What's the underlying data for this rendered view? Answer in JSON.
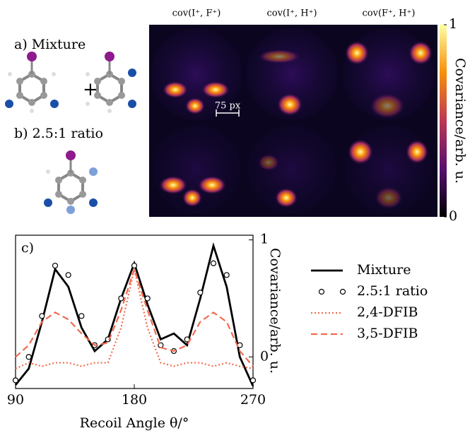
{
  "top_panels": {
    "label_a": "a) Mixture",
    "label_b": "b) 2.5:1 ratio",
    "columns": [
      "cov(I⁺, F⁺)",
      "cov(I⁺, H⁺)",
      "cov(F⁺, H⁺)"
    ],
    "scale_bar": "75 px",
    "colorbar": {
      "label": "Covariance/arb. u.",
      "clim": [
        0,
        1
      ],
      "ticks": [
        0,
        1
      ]
    }
  },
  "chart_data": {
    "type": "line",
    "panel_label": "c)",
    "xlabel": "Recoil Angle θ/°",
    "ylabel": "Covariance/arb. u.",
    "x": [
      90,
      100,
      110,
      120,
      130,
      140,
      150,
      160,
      170,
      180,
      190,
      200,
      210,
      220,
      230,
      240,
      250,
      260,
      270
    ],
    "xlim": [
      90,
      270
    ],
    "xticks": [
      90,
      180,
      270
    ],
    "ylim": [
      -0.27,
      1.04
    ],
    "yticks": [
      0,
      1
    ],
    "series": [
      {
        "name": "Mixture",
        "color": "#000000",
        "style": "solid",
        "values": [
          -0.24,
          -0.1,
          0.3,
          0.75,
          0.6,
          0.25,
          0.05,
          0.15,
          0.5,
          0.8,
          0.45,
          0.15,
          0.2,
          0.1,
          0.5,
          0.95,
          0.6,
          0.0,
          -0.25
        ]
      },
      {
        "name": "2.5:1 ratio",
        "color": "#000000",
        "style": "markers",
        "values": [
          -0.2,
          0.0,
          0.35,
          0.78,
          0.7,
          0.35,
          0.1,
          0.15,
          0.5,
          0.78,
          0.5,
          0.1,
          0.05,
          0.15,
          0.55,
          0.8,
          0.7,
          0.1,
          -0.2
        ]
      },
      {
        "name": "2,4-DFIB",
        "color": "#f26b4f",
        "style": "dotted",
        "values": [
          -0.1,
          -0.05,
          -0.08,
          -0.05,
          -0.05,
          -0.08,
          -0.05,
          -0.05,
          0.25,
          0.75,
          0.25,
          -0.05,
          -0.08,
          -0.05,
          -0.05,
          -0.08,
          -0.05,
          -0.08,
          -0.1
        ]
      },
      {
        "name": "3,5-DFIB",
        "color": "#f26b4f",
        "style": "dashed",
        "values": [
          0.0,
          0.1,
          0.3,
          0.38,
          0.32,
          0.2,
          0.1,
          0.12,
          0.4,
          0.75,
          0.4,
          0.08,
          0.05,
          0.1,
          0.3,
          0.38,
          0.3,
          0.05,
          -0.08
        ]
      }
    ]
  }
}
